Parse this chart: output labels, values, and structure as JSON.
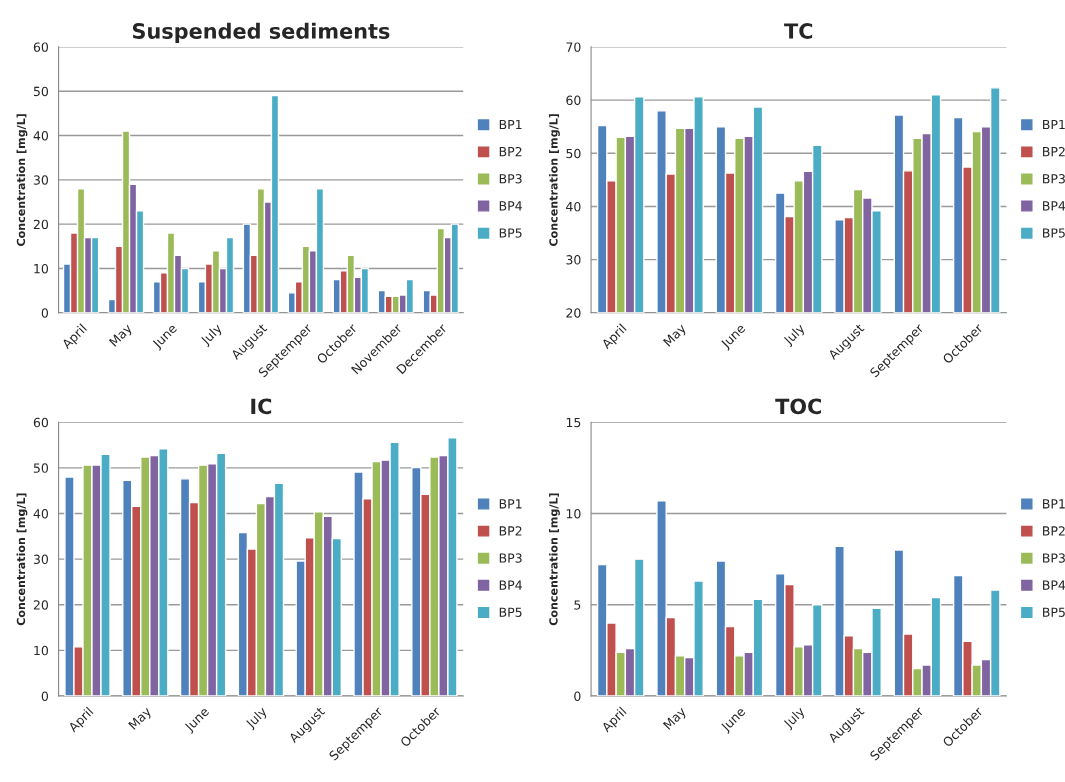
{
  "chart_data": [
    {
      "type": "bar",
      "title": "Suspended sediments",
      "ylabel": "Concentration [mg/L]",
      "categories": [
        "April",
        "May",
        "June",
        "July",
        "August",
        "Septemper",
        "October",
        "November",
        "December"
      ],
      "ylim": [
        0,
        60
      ],
      "yticks": [
        0,
        10,
        20,
        30,
        40,
        50,
        60
      ],
      "grid": "y",
      "legend": "right",
      "series": [
        {
          "name": "BP1",
          "color": "#4f81bd",
          "values": [
            11,
            3,
            7,
            7,
            20,
            4.5,
            7.5,
            5,
            5
          ]
        },
        {
          "name": "BP2",
          "color": "#c0504d",
          "values": [
            18,
            15,
            9,
            11,
            13,
            7,
            9.5,
            3.7,
            4
          ]
        },
        {
          "name": "BP3",
          "color": "#9bbb59",
          "values": [
            28,
            41,
            18,
            14,
            28,
            15,
            13,
            3.7,
            19
          ]
        },
        {
          "name": "BP4",
          "color": "#8064a2",
          "values": [
            17,
            29,
            13,
            10,
            25,
            14,
            8,
            4,
            17
          ]
        },
        {
          "name": "BP5",
          "color": "#4bacc6",
          "values": [
            17,
            23,
            10,
            17,
            49,
            28,
            10,
            7.5,
            20
          ]
        }
      ]
    },
    {
      "type": "bar",
      "title": "TC",
      "ylabel": "Concentration [mg/L]",
      "categories": [
        "April",
        "May",
        "June",
        "July",
        "August",
        "Septemper",
        "October"
      ],
      "ylim": [
        20,
        70
      ],
      "yticks": [
        20,
        30,
        40,
        50,
        60,
        70
      ],
      "grid": "y",
      "legend": "right",
      "series": [
        {
          "name": "BP1",
          "color": "#4f81bd",
          "values": [
            55.2,
            58,
            55,
            42.5,
            37.5,
            57.2,
            56.7
          ]
        },
        {
          "name": "BP2",
          "color": "#c0504d",
          "values": [
            44.8,
            46.1,
            46.3,
            38.1,
            37.9,
            46.7,
            47.4
          ]
        },
        {
          "name": "BP3",
          "color": "#9bbb59",
          "values": [
            53,
            54.7,
            52.8,
            44.8,
            43.2,
            52.8,
            54.1
          ]
        },
        {
          "name": "BP4",
          "color": "#8064a2",
          "values": [
            53.2,
            54.7,
            53.2,
            46.6,
            41.6,
            53.7,
            55
          ]
        },
        {
          "name": "BP5",
          "color": "#4bacc6",
          "values": [
            60.6,
            60.6,
            58.7,
            51.5,
            39.2,
            61,
            62.3
          ]
        }
      ]
    },
    {
      "type": "bar",
      "title": "IC",
      "ylabel": "Concentration [mg/L]",
      "categories": [
        "April",
        "May",
        "June",
        "July",
        "August",
        "Septemper",
        "October"
      ],
      "ylim": [
        0,
        60
      ],
      "yticks": [
        0,
        10,
        20,
        30,
        40,
        50,
        60
      ],
      "grid": "y",
      "legend": "right",
      "series": [
        {
          "name": "BP1",
          "color": "#4f81bd",
          "values": [
            48,
            47.3,
            47.6,
            35.8,
            29.6,
            49.1,
            50.1
          ]
        },
        {
          "name": "BP2",
          "color": "#c0504d",
          "values": [
            10.8,
            41.6,
            42.4,
            32.2,
            34.7,
            43.2,
            44.2
          ]
        },
        {
          "name": "BP3",
          "color": "#9bbb59",
          "values": [
            50.6,
            52.4,
            50.6,
            42.2,
            40.4,
            51.4,
            52.4
          ]
        },
        {
          "name": "BP4",
          "color": "#8064a2",
          "values": [
            50.6,
            52.7,
            50.9,
            43.7,
            39.4,
            51.7,
            52.7
          ]
        },
        {
          "name": "BP5",
          "color": "#4bacc6",
          "values": [
            53,
            54.2,
            53.2,
            46.6,
            34.5,
            55.6,
            56.6
          ]
        }
      ]
    },
    {
      "type": "bar",
      "title": "TOC",
      "ylabel": "Concentration [mg/L]",
      "categories": [
        "April",
        "May",
        "June",
        "July",
        "August",
        "Septemper",
        "October"
      ],
      "ylim": [
        0,
        15
      ],
      "yticks": [
        0,
        5,
        10,
        15
      ],
      "grid": "y",
      "legend": "right",
      "series": [
        {
          "name": "BP1",
          "color": "#4f81bd",
          "values": [
            7.2,
            10.7,
            7.4,
            6.7,
            8.2,
            8.0,
            6.6
          ]
        },
        {
          "name": "BP2",
          "color": "#c0504d",
          "values": [
            4.0,
            4.3,
            3.8,
            6.1,
            3.3,
            3.4,
            3.0
          ]
        },
        {
          "name": "BP3",
          "color": "#9bbb59",
          "values": [
            2.4,
            2.2,
            2.2,
            2.7,
            2.6,
            1.5,
            1.7
          ]
        },
        {
          "name": "BP4",
          "color": "#8064a2",
          "values": [
            2.6,
            2.1,
            2.4,
            2.8,
            2.4,
            1.7,
            2.0
          ]
        },
        {
          "name": "BP5",
          "color": "#4bacc6",
          "values": [
            7.5,
            6.3,
            5.3,
            5.0,
            4.8,
            5.4,
            5.8
          ]
        }
      ]
    }
  ]
}
